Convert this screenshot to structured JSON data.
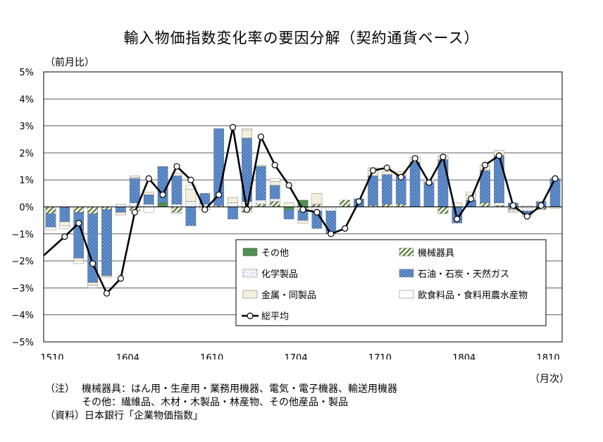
{
  "title": "輸入物価指数変化率の要因分解（契約通貨ベース）",
  "y_unit_label": "（前月比）",
  "x_unit_label": "（月次）",
  "notes": {
    "note_label": "（注）",
    "note_line1": "機械器具：はん用・生産用・業務用機器、電気・電子機器、輸送用機器",
    "note_line2": "その他：繊維品、木材・木製品・林産物、その他産品・製品",
    "source": "（資料）日本銀行「企業物価指数」"
  },
  "colors": {
    "other": "#4f8f4f",
    "machinery": "#6f8f4f",
    "chemical": "#d8e8f4",
    "petroleum": "#4f7fc0",
    "metals": "#f4f0dc",
    "food": "#ffffff",
    "total": "#000000"
  },
  "chart_data": {
    "type": "bar",
    "stacked": true,
    "ylim": [
      -5,
      5
    ],
    "ytick_labels": [
      "5%",
      "4%",
      "3%",
      "2%",
      "1%",
      "0%",
      "−1%",
      "−2%",
      "−3%",
      "−4%",
      "−5%"
    ],
    "x_tick_labels": [
      "1510",
      "1604",
      "1610",
      "1704",
      "1710",
      "1804",
      "1810"
    ],
    "x_tick_index": [
      0,
      6,
      12,
      18,
      24,
      30,
      36
    ],
    "grid": true,
    "legend_position": "lower-right",
    "categories": [
      "1510",
      "1511",
      "1512",
      "1601",
      "1602",
      "1603",
      "1604",
      "1605",
      "1606",
      "1607",
      "1608",
      "1609",
      "1610",
      "1611",
      "1612",
      "1701",
      "1702",
      "1703",
      "1704",
      "1705",
      "1706",
      "1707",
      "1708",
      "1709",
      "1710",
      "1711",
      "1712",
      "1801",
      "1802",
      "1803",
      "1804",
      "1805",
      "1806",
      "1807",
      "1808",
      "1809",
      "1810"
    ],
    "series": [
      {
        "key": "other",
        "name": "その他",
        "pattern": "solid",
        "values": [
          0,
          0,
          0,
          0,
          0,
          0,
          0,
          0,
          0.15,
          0,
          0,
          0,
          0,
          0,
          0,
          0,
          0,
          -0.1,
          0.25,
          0,
          0,
          0,
          0,
          0,
          0,
          0,
          0,
          0,
          0,
          0,
          0,
          0,
          0,
          0,
          0,
          0,
          0
        ]
      },
      {
        "key": "machinery",
        "name": "機械器具",
        "pattern": "hatch",
        "values": [
          -0.25,
          0,
          -0.2,
          -0.25,
          -0.1,
          0,
          -0.15,
          0,
          0,
          -0.2,
          0,
          0,
          0.05,
          0,
          -0.2,
          0.1,
          0.2,
          0,
          -0.1,
          0.1,
          0,
          0.25,
          0,
          0.05,
          0.1,
          0.1,
          0,
          0,
          -0.25,
          0,
          0,
          0.15,
          0.05,
          -0.1,
          0,
          -0.1,
          0
        ]
      },
      {
        "key": "chemical",
        "name": "化学製品",
        "pattern": "dots",
        "values": [
          0,
          0,
          0,
          0,
          0,
          0.1,
          0.15,
          0.1,
          0,
          0.1,
          0.2,
          0.1,
          0,
          0.15,
          0.2,
          0.15,
          0.1,
          0,
          -0.05,
          -0.15,
          -0.15,
          0,
          0,
          0,
          0,
          0,
          0,
          0,
          0,
          0,
          0,
          0,
          0.1,
          -0.05,
          -0.15,
          0,
          0
        ]
      },
      {
        "key": "petroleum",
        "name": "石油・石炭・天然ガス",
        "pattern": "dots",
        "values": [
          -0.5,
          -0.55,
          -1.7,
          -2.55,
          -2.45,
          -0.2,
          0.9,
          0.35,
          1.35,
          1.05,
          -0.7,
          0.4,
          2.85,
          -0.45,
          2.35,
          1.25,
          0.5,
          -0.35,
          -0.35,
          -0.65,
          -0.85,
          0,
          0.3,
          1.1,
          1.1,
          1.05,
          1.65,
          0.9,
          1.75,
          -0.6,
          0.25,
          1.2,
          1.75,
          0.15,
          -0.1,
          0.2,
          1.05
        ]
      },
      {
        "key": "metals",
        "name": "金属・同製品",
        "pattern": "solid",
        "values": [
          0,
          -0.15,
          -0.1,
          -0.1,
          -0.05,
          -0.1,
          0.05,
          0.1,
          0,
          0.1,
          0.45,
          -0.1,
          0,
          0.2,
          0.3,
          0.05,
          0.15,
          0.15,
          -0.1,
          0.4,
          0,
          0,
          0,
          0.3,
          0.1,
          0.15,
          0.2,
          0.05,
          0.15,
          0.15,
          0.2,
          0.2,
          0.2,
          0,
          -0.1,
          0,
          -0.05
        ]
      },
      {
        "key": "food",
        "name": "飲食料品・食料用農水産物",
        "pattern": "solid",
        "values": [
          -0.1,
          -0.1,
          -0.1,
          -0.1,
          0,
          0,
          0.05,
          -0.2,
          0,
          -0.05,
          0.15,
          0,
          0,
          0,
          0.05,
          0,
          0.1,
          0,
          0,
          0,
          0,
          0,
          0,
          0,
          0,
          0,
          0,
          0.05,
          0,
          0,
          0.1,
          0,
          0,
          -0.05,
          0.05,
          0,
          0
        ]
      }
    ],
    "total": {
      "key": "total",
      "name": "総平均",
      "values": [
        -1.1,
        -0.6,
        -2.1,
        -3.2,
        -2.65,
        -0.2,
        1.05,
        0.45,
        1.5,
        1.0,
        -0.1,
        0.45,
        2.95,
        -0.1,
        2.6,
        1.55,
        0.8,
        -0.1,
        -0.2,
        -1.0,
        -0.8,
        0.2,
        1.35,
        1.45,
        1.1,
        1.8,
        0.9,
        1.85,
        -0.45,
        0.3,
        1.55,
        1.9,
        0.05,
        -0.35,
        0.05,
        1.05
      ],
      "start_index": 1,
      "line_start_value": -1.8
    }
  }
}
